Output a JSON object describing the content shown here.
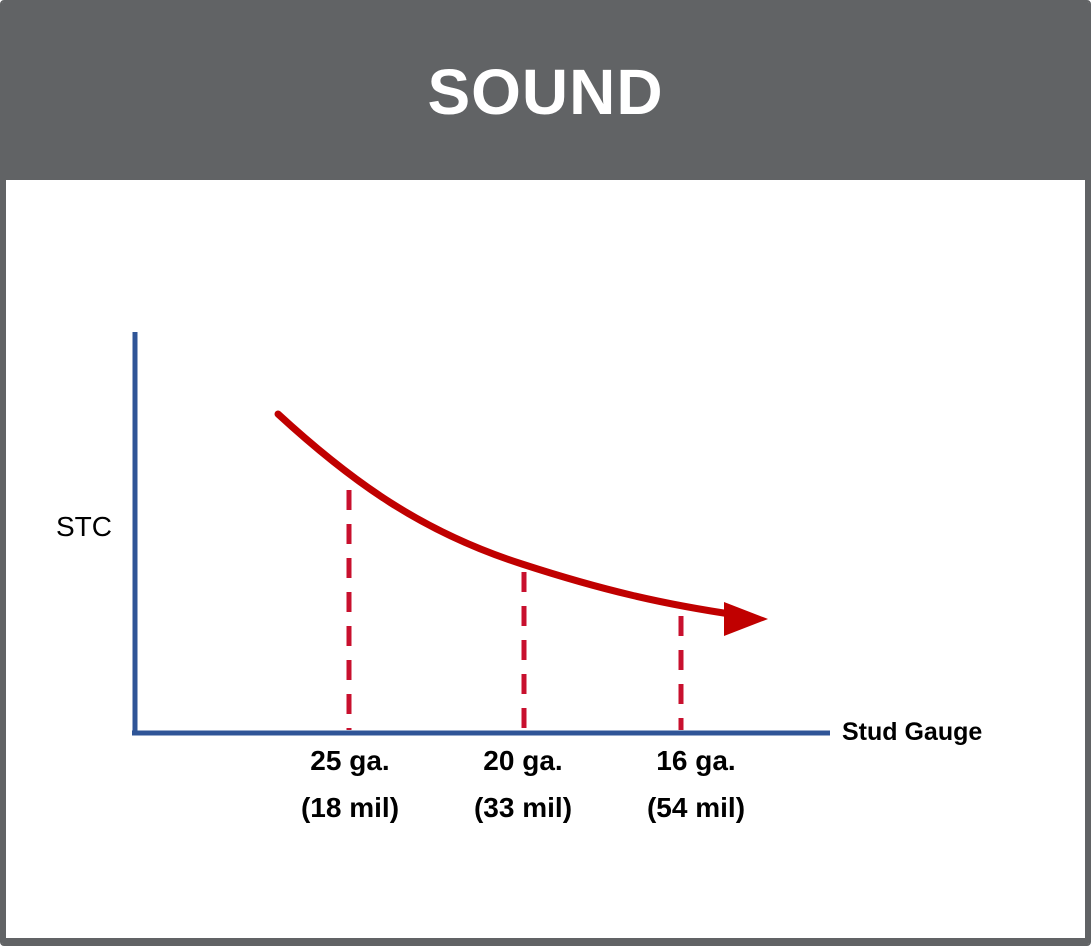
{
  "header": {
    "title": "SOUND"
  },
  "diagram": {
    "y_axis_label": "STC",
    "x_axis_label": "Stud Gauge",
    "gauges": [
      {
        "gauge": "25 ga.",
        "mil": "(18 mil)"
      },
      {
        "gauge": "20 ga.",
        "mil": "(33 mil)"
      },
      {
        "gauge": "16 ga.",
        "mil": "(54 mil)"
      }
    ],
    "colors": {
      "header_bg": "#616365",
      "axis": "#2F5597",
      "curve": "#C00000",
      "dashed": "#C8102E",
      "text": "#000000"
    }
  }
}
